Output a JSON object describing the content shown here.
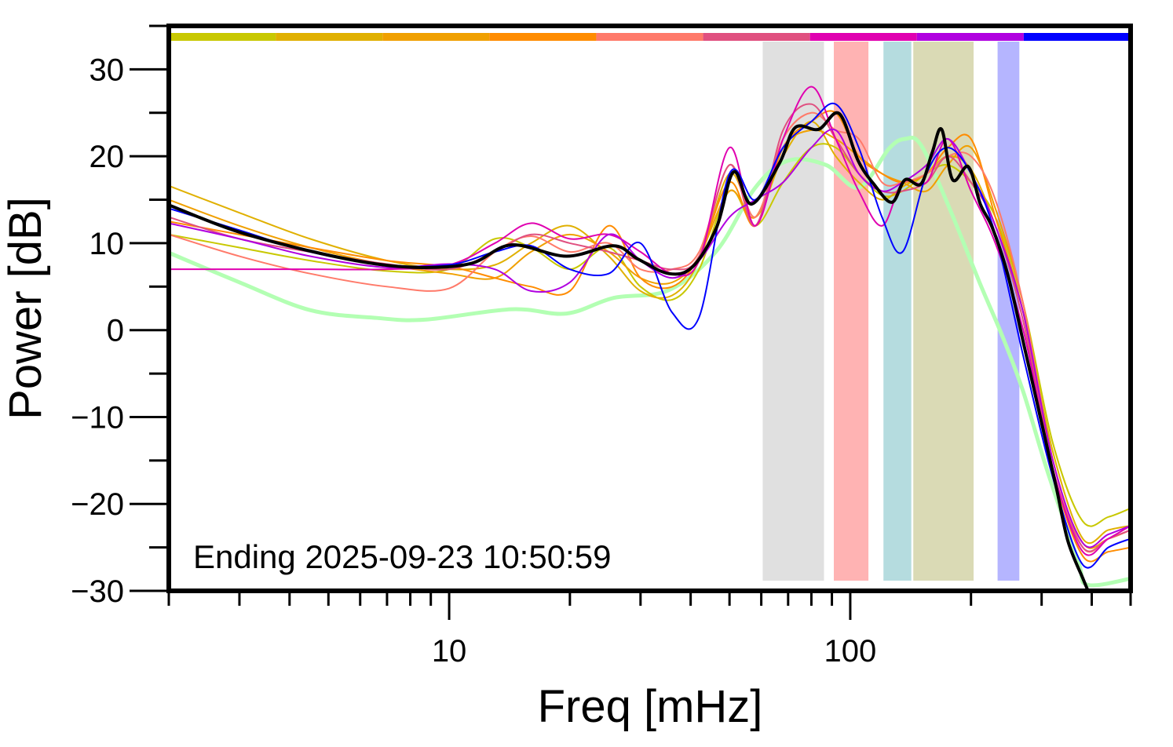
{
  "chart_data": {
    "type": "line",
    "xlabel": "Freq [mHz]",
    "ylabel": "Power [dB]",
    "xscale": "log",
    "xlim": [
      2,
      500
    ],
    "ylim": [
      -30,
      35
    ],
    "x_tick_labels": [
      {
        "value": 10,
        "label": "10"
      },
      {
        "value": 100,
        "label": "100"
      }
    ],
    "y_ticks": [
      -30,
      -20,
      -10,
      0,
      10,
      20,
      30
    ],
    "y_tick_labels": [
      "−30",
      "−20",
      "−10",
      "0",
      "10",
      "20",
      "30"
    ],
    "grid": false,
    "annotation": "Ending 2025-09-23 10:50:59",
    "colorbar": [
      "#c8c800",
      "#e0b000",
      "#f0a000",
      "#ff8c00",
      "#ff7a6a",
      "#e05080",
      "#e000b0",
      "#b000e0",
      "#0000ff"
    ],
    "bands": [
      {
        "from": 60.5,
        "to": 86,
        "color": "#e0e0e0"
      },
      {
        "from": 91,
        "to": 111,
        "color": "#ffb3b3"
      },
      {
        "from": 121,
        "to": 142,
        "color": "#b5dcdf"
      },
      {
        "from": 143.6,
        "to": 203,
        "color": "#dadab5"
      },
      {
        "from": 233,
        "to": 264,
        "color": "#b5b5ff"
      }
    ],
    "x": [
      2,
      3,
      4.5,
      7,
      10,
      13,
      16,
      20,
      25,
      30,
      36,
      42,
      50,
      58,
      68,
      80,
      92,
      105,
      120,
      135,
      155,
      175,
      200,
      230,
      270,
      320,
      380,
      440,
      500
    ],
    "series": [
      {
        "color": "#c8c800",
        "values": [
          11,
          9.5,
          8,
          6.8,
          7,
          10.5,
          9.5,
          7,
          9.5,
          5,
          3.5,
          7,
          16,
          12,
          17,
          21,
          21,
          18,
          15.5,
          16,
          18,
          19,
          17,
          13,
          3,
          -13,
          -22,
          -21.5,
          -20.5
        ]
      },
      {
        "color": "#e0b000",
        "values": [
          16.6,
          13.5,
          10.5,
          8,
          7,
          7.5,
          10,
          12,
          8.5,
          4.5,
          4,
          8,
          18,
          13,
          20,
          24,
          20,
          17,
          15,
          16.5,
          18,
          20,
          18.5,
          12,
          2,
          -14,
          -24,
          -23,
          -22.5
        ]
      },
      {
        "color": "#f0a000",
        "values": [
          15,
          12,
          9.5,
          7.5,
          6.5,
          6,
          9,
          11,
          9,
          6,
          5.5,
          8.5,
          16,
          13,
          21,
          23,
          22,
          20,
          18,
          17,
          16,
          19,
          21,
          14,
          3,
          -15,
          -24.5,
          -24,
          -23
        ]
      },
      {
        "color": "#ff8c00",
        "values": [
          12.5,
          11,
          9.5,
          8,
          7.3,
          6,
          5,
          4.5,
          12,
          6,
          5,
          8.5,
          17,
          12,
          21,
          24,
          25,
          20,
          18,
          17,
          18,
          21,
          22,
          13,
          2,
          -16,
          -26,
          -25.5,
          -25
        ]
      },
      {
        "color": "#ff7a6a",
        "values": [
          11,
          8.5,
          6.5,
          5,
          4.8,
          9,
          10.8,
          9,
          10,
          7,
          7,
          9,
          19,
          13,
          22,
          25,
          23,
          22,
          17,
          17,
          18,
          20,
          20,
          15,
          3,
          -15,
          -25,
          -24,
          -23
        ]
      },
      {
        "color": "#e05080",
        "values": [
          13,
          10.5,
          9,
          7.6,
          7,
          9,
          11,
          10,
          9,
          8,
          7,
          8.5,
          19,
          12,
          23,
          26,
          22,
          18,
          16,
          16,
          17,
          20,
          17,
          12,
          1,
          -16,
          -25,
          -24,
          -23
        ]
      },
      {
        "color": "#e000b0",
        "values": [
          7,
          7,
          7,
          7,
          7.5,
          10,
          12.3,
          10.5,
          11,
          9,
          6.5,
          8,
          21,
          12,
          22,
          28,
          22,
          16,
          12,
          17,
          17,
          22,
          16,
          10,
          0,
          -16,
          -25.5,
          -24,
          -22.5
        ]
      },
      {
        "color": "#b000e0",
        "values": [
          12.3,
          10.5,
          8.5,
          7.2,
          7.6,
          7,
          4.5,
          5.5,
          11,
          8,
          6,
          8,
          13,
          15,
          17,
          21,
          23,
          18,
          16,
          17,
          19,
          22,
          18,
          12,
          2,
          -15,
          -24.5,
          -23.5,
          -22.5
        ]
      },
      {
        "color": "#0000ff",
        "values": [
          14,
          11.5,
          9,
          7.5,
          7.5,
          9,
          9.7,
          7,
          6.5,
          10,
          2,
          1.5,
          18,
          15,
          21,
          24,
          26,
          21,
          13,
          9,
          18,
          21,
          18,
          11,
          -3,
          -17,
          -27,
          -25,
          -24
        ]
      }
    ],
    "reference": {
      "color": "#b3ffb3",
      "x": [
        2,
        3,
        4.5,
        6.6,
        8.7,
        14.3,
        19.6,
        25.7,
        35.3,
        46.4,
        58,
        70,
        87,
        105,
        125,
        137,
        150,
        175,
        210,
        240,
        270,
        310,
        370,
        390,
        500
      ],
      "values": [
        8.9,
        5.5,
        2.3,
        1.4,
        1.2,
        2.4,
        1.9,
        3.7,
        4.6,
        9.1,
        16.4,
        19.5,
        19,
        16.4,
        20.9,
        22,
        21.3,
        14.5,
        5.5,
        -0.8,
        -7.1,
        -16.2,
        -26.6,
        -29.3,
        -28.6
      ]
    },
    "mean": {
      "color": "#000000",
      "x": [
        2,
        2.94,
        4.6,
        6.6,
        8.7,
        11.4,
        14.3,
        19.6,
        25.7,
        29.5,
        35.3,
        40.5,
        46.4,
        51.2,
        56.8,
        66.6,
        72.9,
        83.4,
        93.9,
        104.6,
        114.5,
        127,
        137,
        150,
        160,
        169,
        180,
        197,
        211,
        226,
        247,
        271,
        297,
        326,
        349,
        382,
        400
      ],
      "values": [
        14.4,
        11.4,
        9,
        7.6,
        7.2,
        7.7,
        9.8,
        8.5,
        9.7,
        8.2,
        6.5,
        7.3,
        11.8,
        18.2,
        14.5,
        19.2,
        23.3,
        23.1,
        24.9,
        19.5,
        16.8,
        14.7,
        17.3,
        16.8,
        20.4,
        23.1,
        17.3,
        18.8,
        14.5,
        11.8,
        6.4,
        -1.7,
        -9.8,
        -18,
        -24.3,
        -28.8,
        -31
      ]
    }
  }
}
